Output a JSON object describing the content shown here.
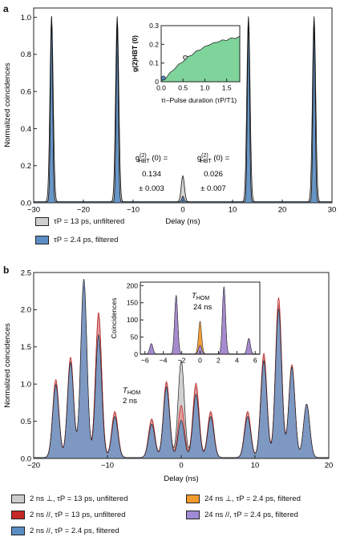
{
  "panels": [
    {
      "label": "a"
    },
    {
      "label": "b"
    }
  ],
  "chart_data": [
    {
      "type": "area",
      "panel": "a",
      "xlabel": "Delay (ns)",
      "ylabel": "Normalized coincidences",
      "xlim": [
        -30,
        30
      ],
      "ylim": [
        0,
        1.05
      ],
      "xticks": [
        -30,
        -20,
        -10,
        0,
        10,
        20,
        30
      ],
      "yticks": [
        0.0,
        0.2,
        0.4,
        0.6,
        0.8,
        1.0
      ],
      "ytick_labels": [
        "0.0",
        "0.2",
        "0.4",
        "0.6",
        "0.8",
        "1.0"
      ],
      "series": [
        {
          "name": "τP = 13 ps, unfiltered",
          "color": "#cfcfcf",
          "peaks": [
            {
              "x": -26.4,
              "y": 1.0
            },
            {
              "x": -13.2,
              "y": 1.0
            },
            {
              "x": 0,
              "y": 0.14
            },
            {
              "x": 13.2,
              "y": 1.0
            },
            {
              "x": 26.4,
              "y": 1.0
            }
          ]
        },
        {
          "name": "τP = 2.4 ps, filtered",
          "color": "#5b8ec4",
          "peaks": [
            {
              "x": -26.4,
              "y": 1.0
            },
            {
              "x": -13.2,
              "y": 0.96
            },
            {
              "x": 0,
              "y": 0.03
            },
            {
              "x": 13.2,
              "y": 0.99
            },
            {
              "x": 26.4,
              "y": 0.97
            }
          ]
        }
      ],
      "annotations": [
        {
          "label": "g(2)HBT (0) =",
          "value": "0.134",
          "error": "± 0.003"
        },
        {
          "label": "g(2)HBT (0) =",
          "value": "0.026",
          "error": "± 0.007"
        }
      ],
      "inset": {
        "type": "area",
        "xlabel": "π–Pulse duration (τP/T1)",
        "ylabel": "g(2)HBT (0)",
        "xlim": [
          0,
          1.8
        ],
        "ylim": [
          0,
          0.3
        ],
        "xticks": [
          0,
          0.5,
          1.0,
          1.5
        ],
        "xtick_labels": [
          "0.0",
          "0.5",
          "1.0",
          "1.5"
        ],
        "yticks": [
          0,
          0.1,
          0.2,
          0.3
        ],
        "ytick_labels": [
          "0",
          "0.1",
          "0.2",
          "0.3"
        ],
        "color": "#7fd49b",
        "x": [
          0.0,
          0.1,
          0.2,
          0.3,
          0.4,
          0.5,
          0.6,
          0.7,
          0.8,
          0.9,
          1.0,
          1.1,
          1.2,
          1.3,
          1.4,
          1.5,
          1.6,
          1.7,
          1.8
        ],
        "y": [
          0.0,
          0.02,
          0.045,
          0.07,
          0.09,
          0.11,
          0.13,
          0.145,
          0.16,
          0.175,
          0.185,
          0.2,
          0.205,
          0.215,
          0.22,
          0.225,
          0.23,
          0.235,
          0.24
        ],
        "markers": [
          {
            "x": 0.05,
            "y": 0.02
          },
          {
            "x": 0.55,
            "y": 0.13
          }
        ]
      }
    },
    {
      "type": "area",
      "panel": "b",
      "xlabel": "Delay (ns)",
      "ylabel": "Normalized coincidences",
      "xlim": [
        -20,
        20
      ],
      "ylim": [
        0,
        2.5
      ],
      "xticks": [
        -20,
        -10,
        0,
        10,
        20
      ],
      "yticks": [
        0.0,
        0.5,
        1.0,
        1.5,
        2.0,
        2.5
      ],
      "ytick_labels": [
        "0.0",
        "0.5",
        "1.0",
        "1.5",
        "2.0",
        "2.5"
      ],
      "series": [
        {
          "name": "2 ns ⊥, τP = 13 ps, unfiltered",
          "color": "#cccccc",
          "peaks": [
            {
              "x": -17,
              "y": 1.0
            },
            {
              "x": -15,
              "y": 1.3
            },
            {
              "x": -13.2,
              "y": 2.25
            },
            {
              "x": -11.2,
              "y": 1.9
            },
            {
              "x": -9,
              "y": 0.6
            },
            {
              "x": -4,
              "y": 0.5
            },
            {
              "x": -2,
              "y": 1.0
            },
            {
              "x": 0,
              "y": 1.3
            },
            {
              "x": 2,
              "y": 0.95
            },
            {
              "x": 4,
              "y": 0.6
            },
            {
              "x": 9,
              "y": 0.6
            },
            {
              "x": 11.2,
              "y": 1.35
            },
            {
              "x": 13.2,
              "y": 2.05
            },
            {
              "x": 15,
              "y": 1.2
            },
            {
              "x": 17,
              "y": 0.7
            }
          ]
        },
        {
          "name": "2 ns //, τP = 13 ps, unfiltered",
          "color": "#e88a8a",
          "peaks": [
            {
              "x": -17,
              "y": 1.05
            },
            {
              "x": -15,
              "y": 1.35
            },
            {
              "x": -13.2,
              "y": 2.3
            },
            {
              "x": -11.2,
              "y": 1.95
            },
            {
              "x": -9,
              "y": 0.62
            },
            {
              "x": -4,
              "y": 0.52
            },
            {
              "x": -2,
              "y": 1.02
            },
            {
              "x": 0,
              "y": 0.7
            },
            {
              "x": 2,
              "y": 1.0
            },
            {
              "x": 4,
              "y": 0.62
            },
            {
              "x": 9,
              "y": 0.62
            },
            {
              "x": 11.2,
              "y": 1.4
            },
            {
              "x": 13.2,
              "y": 2.15
            },
            {
              "x": 15,
              "y": 1.25
            },
            {
              "x": 17,
              "y": 0.72
            }
          ]
        },
        {
          "name": "2 ns //, τP = 2.4 ps, filtered",
          "color": "#5b8ec4",
          "peaks": [
            {
              "x": -17,
              "y": 0.98
            },
            {
              "x": -15,
              "y": 1.28
            },
            {
              "x": -13.2,
              "y": 2.4
            },
            {
              "x": -11.2,
              "y": 1.65
            },
            {
              "x": -9,
              "y": 0.55
            },
            {
              "x": -4,
              "y": 0.45
            },
            {
              "x": -2,
              "y": 0.95
            },
            {
              "x": 0,
              "y": 0.5
            },
            {
              "x": 2,
              "y": 0.85
            },
            {
              "x": 4,
              "y": 0.55
            },
            {
              "x": 9,
              "y": 0.55
            },
            {
              "x": 11.2,
              "y": 1.3
            },
            {
              "x": 13.2,
              "y": 2.0
            },
            {
              "x": 15,
              "y": 1.22
            },
            {
              "x": 17,
              "y": 0.72
            }
          ]
        }
      ],
      "annotations": [
        {
          "label": "THOM",
          "value": "2 ns"
        }
      ],
      "inset": {
        "type": "area",
        "xlabel": "",
        "ylabel": "Coincidences",
        "xlim": [
          -6.5,
          6.5
        ],
        "ylim": [
          0,
          210
        ],
        "xticks": [
          -6,
          -4,
          -2,
          0,
          2,
          4,
          6
        ],
        "yticks": [
          0,
          50,
          100,
          150,
          200
        ],
        "annotation": {
          "label": "THOM",
          "value": "24 ns"
        },
        "series": [
          {
            "name": "24 ns ⊥, τP = 2.4 ps, filtered",
            "color": "#f39a2c",
            "peaks": [
              {
                "x": -5.3,
                "y": 30
              },
              {
                "x": -2.6,
                "y": 170
              },
              {
                "x": 0,
                "y": 95
              },
              {
                "x": 2.6,
                "y": 195
              },
              {
                "x": 5.3,
                "y": 45
              }
            ]
          },
          {
            "name": "24 ns //, τP = 2.4 ps, filtered",
            "color": "#a08ad6",
            "peaks": [
              {
                "x": -5.3,
                "y": 30
              },
              {
                "x": -2.6,
                "y": 170
              },
              {
                "x": 0,
                "y": 25
              },
              {
                "x": 2.6,
                "y": 195
              },
              {
                "x": 5.3,
                "y": 45
              }
            ]
          }
        ]
      }
    }
  ]
}
